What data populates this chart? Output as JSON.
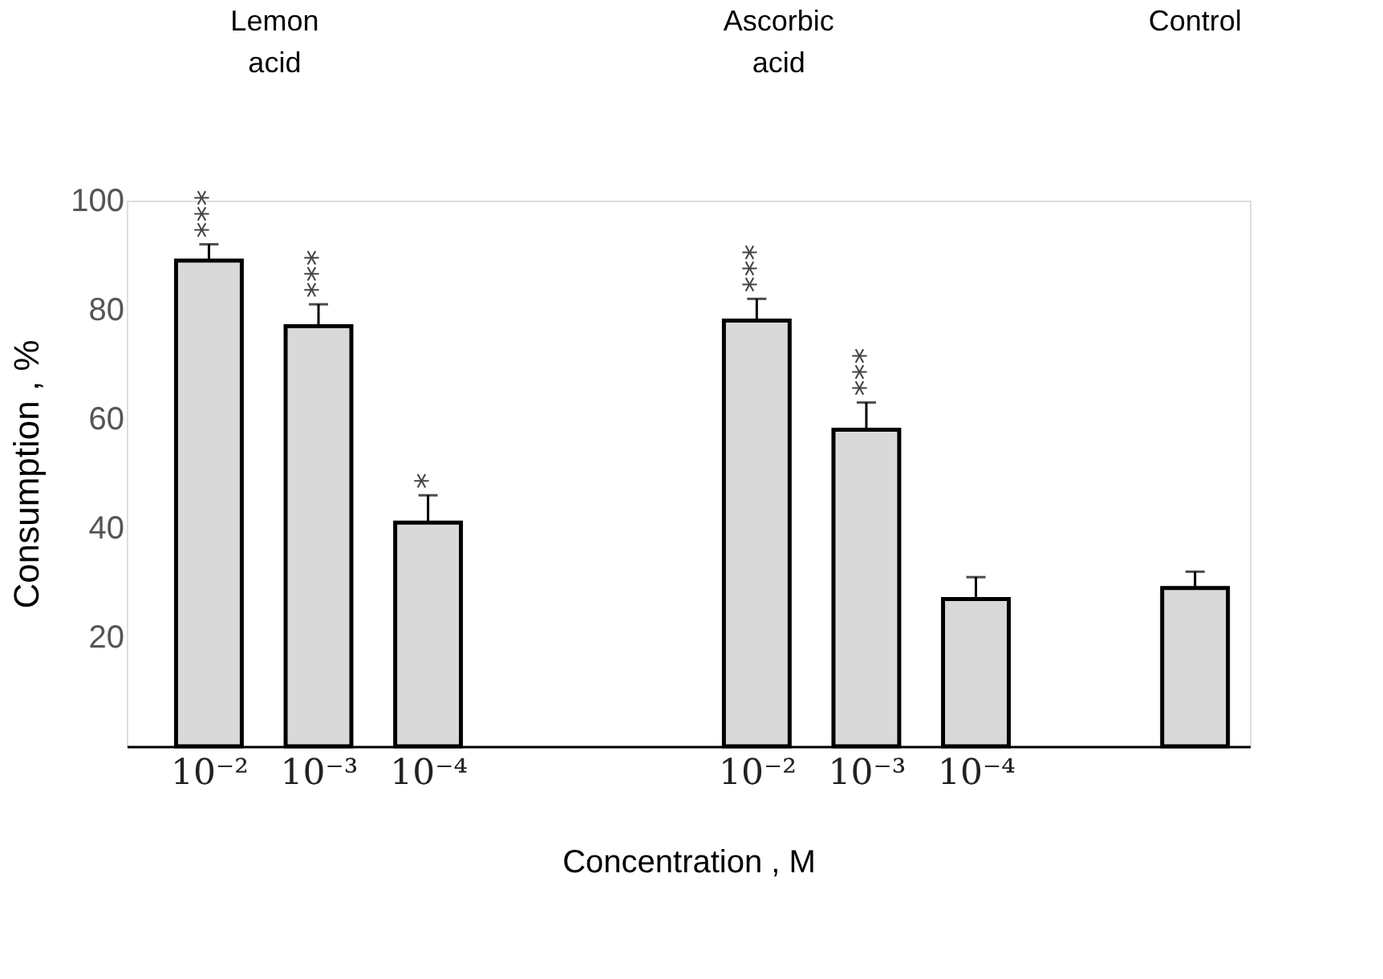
{
  "chart_data": {
    "type": "bar",
    "xlabel": "Concentration , M",
    "ylabel": "Consumption , %",
    "categories": [
      "10⁻²",
      "10⁻³",
      "10⁻⁴",
      null,
      null,
      "10⁻²",
      "10⁻³",
      "10⁻⁴",
      null,
      null
    ],
    "values": [
      89,
      77,
      41,
      null,
      null,
      78,
      58,
      27,
      null,
      29
    ],
    "errors": [
      3,
      4,
      5,
      null,
      null,
      4,
      5,
      4,
      null,
      3
    ],
    "value_labels": [
      "***",
      "***",
      "*",
      null,
      null,
      "***",
      "***",
      null,
      null,
      null
    ],
    "color": "#d9d9d9",
    "ylim": [
      0,
      100
    ],
    "yticks": [
      20,
      40,
      60,
      80,
      100
    ],
    "grid": false,
    "annotations": [
      "Lemon acid",
      "Ascorbic acid",
      "Control"
    ]
  }
}
